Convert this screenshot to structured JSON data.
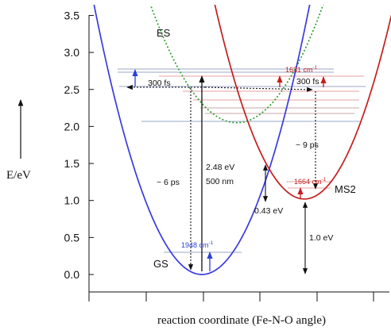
{
  "chart_data": {
    "type": "diagram",
    "xlabel": "reaction coordinate (Fe-N-O angle)",
    "ylabel": "E/eV",
    "ylim": [
      0,
      3.5
    ],
    "yticks": [
      "0.0",
      "0.5",
      "1.0",
      "1.5",
      "2.0",
      "2.5",
      "3.0",
      "3.5"
    ],
    "curves": [
      {
        "name": "GS",
        "color": "#3a3adf",
        "style": "solid"
      },
      {
        "name": "ES",
        "color": "#2ea02e",
        "style": "dotted"
      },
      {
        "name": "MS2",
        "color": "#c41e1e",
        "style": "solid"
      }
    ],
    "annotations": {
      "fs_left": "300 fs",
      "fs_right": "300 fs",
      "wn_1631": "1631 cm",
      "wn_1664": "1664 cm",
      "wn_1948": "1948 cm",
      "wn_exp": "-1",
      "ps_9": "~ 9 ps",
      "ps_6": "~ 6 ps",
      "ev_248": "2.48 eV",
      "nm_500": "500 nm",
      "ev_043": "0.43 eV",
      "ev_10": "1.0 eV"
    }
  }
}
